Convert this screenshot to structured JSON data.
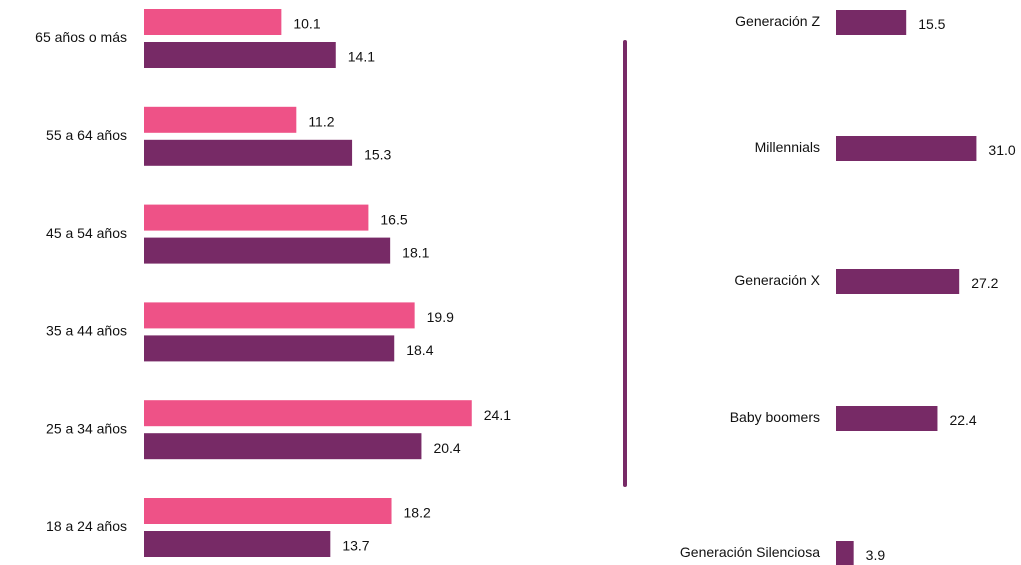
{
  "chart_data": [
    {
      "type": "bar",
      "orientation": "horizontal",
      "categories": [
        "65 años o más",
        "55 a 64 años",
        "45 a 54 años",
        "35 a 44 años",
        "25 a 34 años",
        "18 a 24 años"
      ],
      "series": [
        {
          "color": "#ee5287",
          "values": [
            10.1,
            11.2,
            16.5,
            19.9,
            24.1,
            18.2
          ]
        },
        {
          "color": "#772a66",
          "values": [
            14.1,
            15.3,
            18.1,
            18.4,
            20.4,
            13.7
          ]
        }
      ],
      "xlim": [
        0,
        25
      ]
    },
    {
      "type": "bar",
      "orientation": "horizontal",
      "categories": [
        "Generación Z",
        "Millennials",
        "Generación X",
        "Baby boomers",
        "Generación Silenciosa"
      ],
      "series": [
        {
          "color": "#772a66",
          "values": [
            15.5,
            31.0,
            27.2,
            22.4,
            3.9
          ],
          "value_labels": [
            "15.5",
            "31.0",
            "27.2",
            "22.4",
            "3.9"
          ]
        }
      ],
      "xlim": [
        0,
        34
      ]
    }
  ]
}
